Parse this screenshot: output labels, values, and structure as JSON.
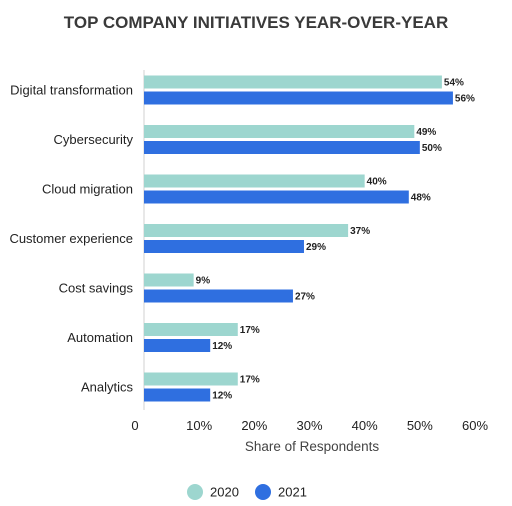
{
  "chart_data": {
    "type": "bar",
    "orientation": "horizontal",
    "title": "TOP COMPANY INITIATIVES YEAR-OVER-YEAR",
    "xlabel": "Share of Respondents",
    "ylabel": "",
    "categories": [
      "Digital transformation",
      "Cybersecurity",
      "Cloud migration",
      "Customer experience",
      "Cost savings",
      "Automation",
      "Analytics"
    ],
    "series": [
      {
        "name": "2020",
        "color": "#9dd6cf",
        "values": [
          54,
          49,
          40,
          37,
          9,
          17,
          17
        ],
        "labels": [
          "54%",
          "49%",
          "40%",
          "37%",
          "9%",
          "17%",
          "17%"
        ]
      },
      {
        "name": "2021",
        "color": "#2f6fe0",
        "values": [
          56,
          50,
          48,
          29,
          27,
          12,
          12
        ],
        "labels": [
          "56%",
          "50%",
          "48%",
          "29%",
          "27%",
          "12%",
          "12%"
        ]
      }
    ],
    "xlim": [
      0,
      60
    ],
    "x_ticks": [
      0,
      10,
      20,
      30,
      40,
      50,
      60
    ],
    "x_tick_labels": [
      "0",
      "10%",
      "20%",
      "30%",
      "40%",
      "50%",
      "60%"
    ],
    "grid": false,
    "legend_position": "bottom-center"
  }
}
